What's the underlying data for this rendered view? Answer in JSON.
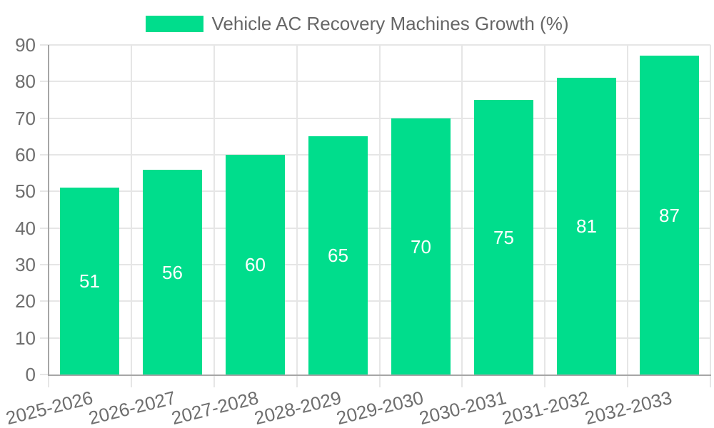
{
  "legend": {
    "label": "Vehicle AC Recovery Machines Growth (%)"
  },
  "chart_data": {
    "type": "bar",
    "title": "Vehicle AC Recovery Machines Growth (%)",
    "categories": [
      "2025-2026",
      "2026-2027",
      "2027-2028",
      "2028-2029",
      "2029-2030",
      "2030-2031",
      "2031-2032",
      "2032-2033"
    ],
    "values": [
      51,
      56,
      60,
      65,
      70,
      75,
      81,
      87
    ],
    "value_labels": [
      51,
      56,
      60,
      65,
      70,
      75,
      81,
      87
    ],
    "xlabel": "",
    "ylabel": "",
    "ylim": [
      0,
      90
    ],
    "yticks": [
      0,
      10,
      20,
      30,
      40,
      50,
      60,
      70,
      80,
      90
    ],
    "grid": true,
    "legend_position": "top",
    "x_label_rotation_deg": -14
  },
  "colors": {
    "bar": "#00DD8C",
    "grid": "#E6E6E6",
    "axis": "#A6A6A6",
    "tick_text": "#6E6E6E",
    "legend_text": "#666666",
    "value_text": "#FFFFFF",
    "background": "#FFFFFF"
  }
}
